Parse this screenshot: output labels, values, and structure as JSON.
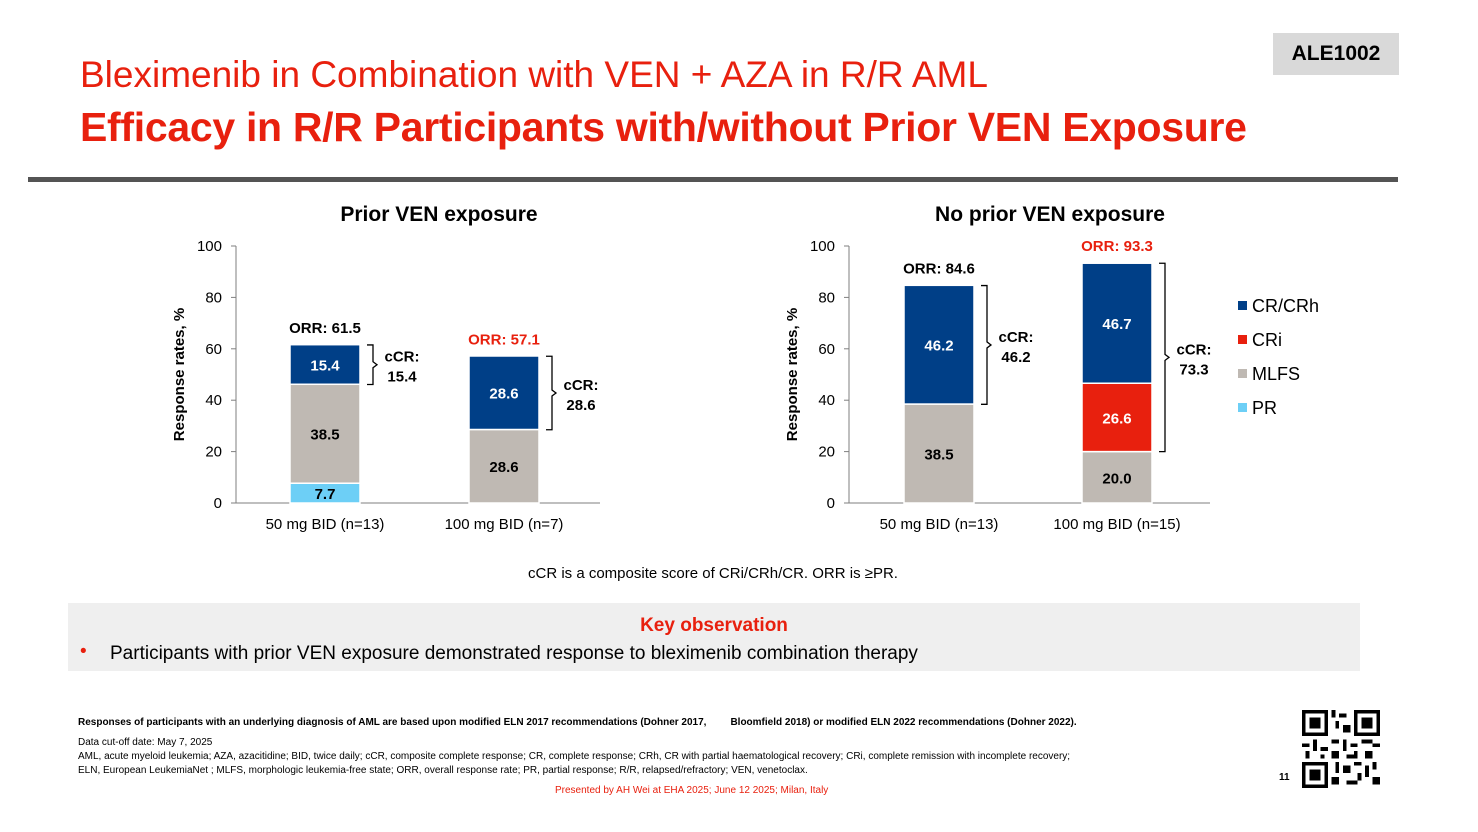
{
  "header": {
    "title_line1": "Bleximenib in Combination with VEN + AZA in R/R AML",
    "title_line2": "Efficacy in R/R Participants with/without Prior VEN Exposure",
    "badge": "ALE1002"
  },
  "colors": {
    "CR/CRh": "#003f87",
    "CRi": "#e8200e",
    "MLFS": "#bfb9b3",
    "PR": "#6dcff6",
    "accent": "#e8200e"
  },
  "chart_data": [
    {
      "type": "bar",
      "stacked": true,
      "title": "Prior VEN exposure",
      "ylabel": "Response rates, %",
      "ylim": [
        0,
        100
      ],
      "yticks": [
        0,
        20,
        40,
        60,
        80,
        100
      ],
      "categories": [
        "50 mg BID (n=13)",
        "100 mg BID (n=7)"
      ],
      "series": [
        {
          "name": "PR",
          "values": [
            7.7,
            null
          ]
        },
        {
          "name": "MLFS",
          "values": [
            38.5,
            28.6
          ]
        },
        {
          "name": "CRi",
          "values": [
            null,
            null
          ]
        },
        {
          "name": "CR/CRh",
          "values": [
            15.4,
            28.6
          ]
        }
      ],
      "orr_labels": [
        "ORR: 61.5",
        "ORR: 57.1"
      ],
      "orr_values": [
        61.5,
        57.1
      ],
      "orr_highlight": [
        false,
        true
      ],
      "ccr_labels": [
        [
          "cCR:",
          "15.4"
        ],
        [
          "cCR:",
          "28.6"
        ]
      ],
      "ccr_values": [
        15.4,
        28.6
      ]
    },
    {
      "type": "bar",
      "stacked": true,
      "title": "No prior VEN exposure",
      "ylabel": "Response rates, %",
      "ylim": [
        0,
        100
      ],
      "yticks": [
        0,
        20,
        40,
        60,
        80,
        100
      ],
      "categories": [
        "50 mg BID (n=13)",
        "100 mg BID (n=15)"
      ],
      "series": [
        {
          "name": "PR",
          "values": [
            null,
            null
          ]
        },
        {
          "name": "MLFS",
          "values": [
            38.5,
            20.0
          ]
        },
        {
          "name": "CRi",
          "values": [
            null,
            26.6
          ]
        },
        {
          "name": "CR/CRh",
          "values": [
            46.2,
            46.7
          ]
        }
      ],
      "orr_labels": [
        "ORR: 84.6",
        "ORR: 93.3"
      ],
      "orr_values": [
        84.6,
        93.3
      ],
      "orr_highlight": [
        false,
        true
      ],
      "ccr_labels": [
        [
          "cCR:",
          "46.2"
        ],
        [
          "cCR:",
          "73.3"
        ]
      ],
      "ccr_values": [
        46.2,
        73.3
      ]
    }
  ],
  "legend": {
    "placement": "right",
    "items": [
      "CR/CRh",
      "CRi",
      "MLFS",
      "PR"
    ]
  },
  "composite_note": "cCR is a composite score of CRi/CRh/CR. ORR is ≥PR.",
  "key_observation": {
    "title": "Key observation",
    "bullet": "•",
    "text": "Participants with prior VEN exposure demonstrated response to bleximenib combination therapy"
  },
  "footnotes": {
    "bold_part1": "Responses of participants with an underlying diagnosis of AML are based upon modified ELN 2017 recommendations (Dohner 2017,",
    "bold_part2": "Bloomfield 2018) or modified ELN 2022 recommendations (Dohner 2022).",
    "cutoff": "Data cut-off date: May 7, 2025",
    "abbrev1": "AML, acute myeloid  leukemia; AZA, azacitidine; BID, twice daily;    cCR, composite complete response; CR, complete response;    CRh, CR with partial haematological recovery;   CRi, complete remission with incomplete recovery;",
    "abbrev2": "ELN, European  LeukemiaNet ; MLFS, morphologic  leukemia-free state; ORR, overall response rate;   PR, partial response;  R/R, relapsed/refractory; VEN, venetoclax.",
    "presented_by": "Presented by AH Wei at EHA 2025; June 12 2025; Milan, Italy",
    "page_number": "11"
  }
}
